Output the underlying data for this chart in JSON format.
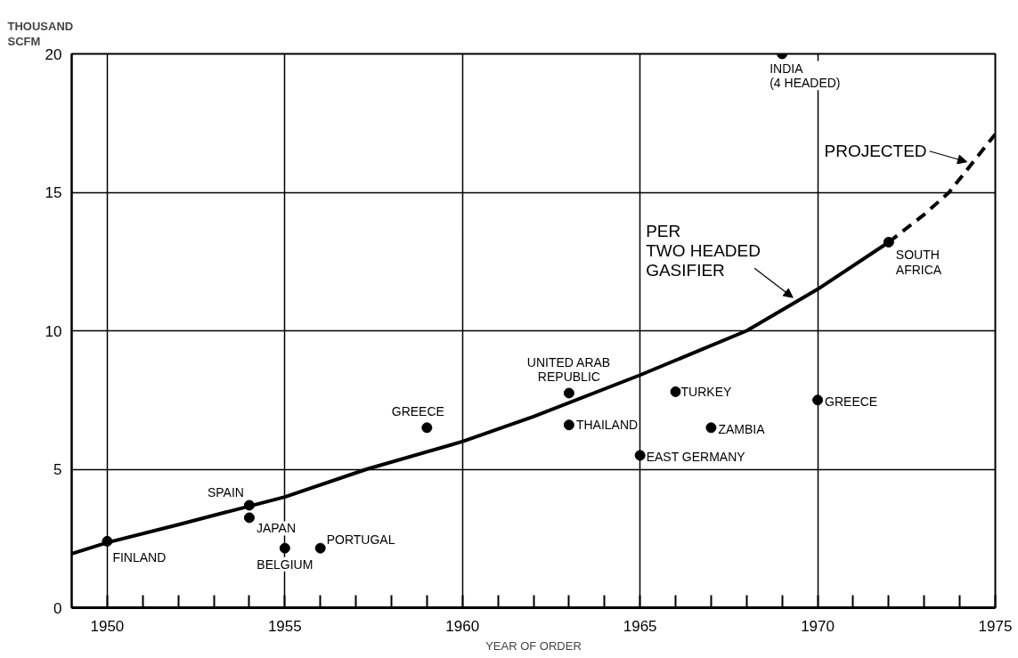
{
  "chart_data": {
    "type": "scatter",
    "xlabel": "YEAR OF ORDER",
    "ylabel": "THOUSAND SCFM",
    "xlim": [
      1949,
      1975
    ],
    "ylim": [
      0,
      20
    ],
    "xticks": [
      1950,
      {
        "value": 1951,
        "label": null
      },
      {
        "value": 1952,
        "label": null
      },
      {
        "value": 1953,
        "label": null
      },
      {
        "value": 1954,
        "label": null
      },
      1955,
      {
        "value": 1956,
        "label": null
      },
      {
        "value": 1957,
        "label": null
      },
      {
        "value": 1958,
        "label": null
      },
      {
        "value": 1959,
        "label": null
      },
      1960,
      {
        "value": 1961,
        "label": null
      },
      {
        "value": 1962,
        "label": null
      },
      {
        "value": 1963,
        "label": null
      },
      {
        "value": 1964,
        "label": null
      },
      1965,
      {
        "value": 1966,
        "label": null
      },
      {
        "value": 1967,
        "label": null
      },
      {
        "value": 1968,
        "label": null
      },
      {
        "value": 1969,
        "label": null
      },
      1970,
      {
        "value": 1971,
        "label": null
      },
      {
        "value": 1972,
        "label": null
      },
      {
        "value": 1973,
        "label": null
      },
      {
        "value": 1974,
        "label": null
      },
      1975
    ],
    "yticks": [
      0,
      5,
      10,
      15,
      20
    ],
    "grid": true,
    "marker": "circle",
    "series": [
      {
        "type": "scatter",
        "color": "#000000",
        "x": [
          1950,
          1954,
          1954,
          1955,
          1956,
          1959,
          1963,
          1963,
          1965,
          1966,
          1967,
          1970,
          1972,
          1969
        ],
        "values": [
          2.4,
          3.7,
          3.25,
          2.15,
          2.15,
          6.5,
          7.75,
          6.6,
          5.5,
          7.8,
          6.5,
          7.5,
          13.2,
          20
        ]
      },
      {
        "type": "line",
        "color": "#000000",
        "line_style": "solid",
        "marker": "none",
        "x": [
          1949,
          1950,
          1952,
          1955,
          1957.3,
          1960,
          1962,
          1965,
          1968,
          1970,
          1972
        ],
        "values": [
          1.95,
          2.35,
          3.0,
          4.0,
          5.0,
          6.0,
          6.9,
          8.4,
          10.0,
          11.5,
          13.2
        ]
      },
      {
        "type": "line",
        "color": "#000000",
        "line_style": "dashed",
        "marker": "none",
        "x": [
          1972,
          1973,
          1973.7,
          1975
        ],
        "values": [
          13.2,
          14.2,
          15.0,
          17.1
        ]
      }
    ],
    "annotations": [
      {
        "text": "FINLAND",
        "x": 1950,
        "y": 2.4
      },
      {
        "text": "SPAIN",
        "x": 1954,
        "y": 3.7
      },
      {
        "text": "JAPAN",
        "x": 1954,
        "y": 3.25
      },
      {
        "text": "BELGIUM",
        "x": 1955,
        "y": 2.15
      },
      {
        "text": "PORTUGAL",
        "x": 1956,
        "y": 2.15
      },
      {
        "text": "GREECE",
        "x": 1959,
        "y": 6.5
      },
      {
        "text": "UNITED ARAB\nREPUBLIC",
        "x": 1963,
        "y": 7.75
      },
      {
        "text": "THAILAND",
        "x": 1963,
        "y": 6.6
      },
      {
        "text": "EAST GERMANY",
        "x": 1965,
        "y": 5.5
      },
      {
        "text": "TURKEY",
        "x": 1966,
        "y": 7.8
      },
      {
        "text": "ZAMBIA",
        "x": 1967,
        "y": 6.5
      },
      {
        "text": "GREECE",
        "x": 1970,
        "y": 7.5
      },
      {
        "text": "SOUTH\nAFRICA",
        "x": 1972,
        "y": 13.2
      },
      {
        "text": "INDIA\n(4 HEADED)",
        "x": 1969,
        "y": 20
      },
      {
        "text": "PER\nTWO HEADED\nGASIFIER",
        "x": 1969.3,
        "y": 11.2
      },
      {
        "text": "PROJECTED",
        "x": 1974.2,
        "y": 16.1
      }
    ]
  }
}
